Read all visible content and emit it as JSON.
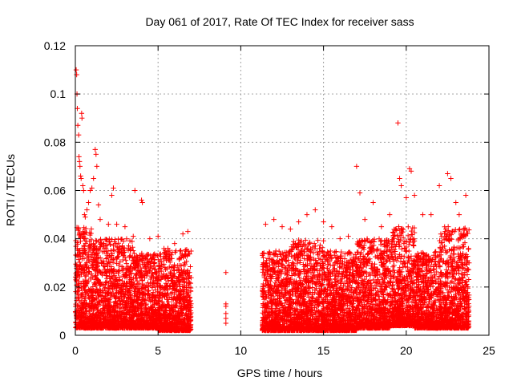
{
  "chart_data": {
    "type": "scatter",
    "title": "Day 061 of 2017, Rate Of TEC Index for receiver sass",
    "xlabel": "GPS time / hours",
    "ylabel": "ROTI / TECUs",
    "xlim": [
      0,
      25
    ],
    "ylim": [
      0,
      0.12
    ],
    "x_ticks": [
      0,
      5,
      10,
      15,
      20,
      25
    ],
    "x_tick_labels": [
      "0",
      "5",
      "10",
      "15",
      "20",
      "25"
    ],
    "y_ticks": [
      0,
      0.02,
      0.04,
      0.06,
      0.08,
      0.1,
      0.12
    ],
    "y_tick_labels": [
      "0",
      "0.02",
      "0.04",
      "0.06",
      "0.08",
      "0.1",
      "0.12"
    ],
    "grid": true,
    "marker": "+",
    "colors": {
      "points": "#ff0000",
      "grid": "#a0a0a0",
      "axis": "#000000"
    },
    "series": [
      {
        "name": "ROTI",
        "points": [
          [
            0.05,
            0.11
          ],
          [
            0.08,
            0.108
          ],
          [
            0.1,
            0.1
          ],
          [
            0.12,
            0.094
          ],
          [
            0.15,
            0.087
          ],
          [
            0.2,
            0.083
          ],
          [
            0.22,
            0.074
          ],
          [
            0.25,
            0.072
          ],
          [
            0.28,
            0.07
          ],
          [
            0.32,
            0.066
          ],
          [
            0.35,
            0.065
          ],
          [
            0.38,
            0.092
          ],
          [
            0.4,
            0.09
          ],
          [
            0.45,
            0.062
          ],
          [
            0.5,
            0.06
          ],
          [
            0.55,
            0.05
          ],
          [
            0.6,
            0.049
          ],
          [
            0.7,
            0.052
          ],
          [
            0.8,
            0.055
          ],
          [
            0.9,
            0.06
          ],
          [
            1.0,
            0.061
          ],
          [
            1.1,
            0.065
          ],
          [
            1.2,
            0.077
          ],
          [
            1.25,
            0.075
          ],
          [
            1.3,
            0.07
          ],
          [
            1.4,
            0.054
          ],
          [
            1.5,
            0.048
          ],
          [
            2.0,
            0.046
          ],
          [
            2.2,
            0.058
          ],
          [
            2.3,
            0.061
          ],
          [
            2.5,
            0.046
          ],
          [
            3.0,
            0.045
          ],
          [
            3.5,
            0.041
          ],
          [
            3.6,
            0.06
          ],
          [
            4.0,
            0.056
          ],
          [
            4.05,
            0.055
          ],
          [
            4.5,
            0.04
          ],
          [
            5.0,
            0.041
          ],
          [
            5.5,
            0.034
          ],
          [
            6.0,
            0.038
          ],
          [
            6.5,
            0.042
          ],
          [
            6.8,
            0.043
          ],
          [
            9.1,
            0.026
          ],
          [
            9.1,
            0.013
          ],
          [
            9.1,
            0.012
          ],
          [
            9.1,
            0.009
          ],
          [
            9.1,
            0.007
          ],
          [
            9.1,
            0.005
          ],
          [
            11.5,
            0.046
          ],
          [
            12.0,
            0.048
          ],
          [
            12.5,
            0.045
          ],
          [
            13.0,
            0.044
          ],
          [
            13.5,
            0.047
          ],
          [
            14.0,
            0.05
          ],
          [
            14.5,
            0.052
          ],
          [
            15.0,
            0.047
          ],
          [
            15.5,
            0.045
          ],
          [
            16.0,
            0.04
          ],
          [
            16.5,
            0.041
          ],
          [
            17.0,
            0.07
          ],
          [
            17.2,
            0.059
          ],
          [
            17.5,
            0.048
          ],
          [
            18.0,
            0.055
          ],
          [
            18.5,
            0.045
          ],
          [
            19.0,
            0.05
          ],
          [
            19.5,
            0.088
          ],
          [
            19.6,
            0.065
          ],
          [
            19.7,
            0.062
          ],
          [
            20.0,
            0.057
          ],
          [
            20.2,
            0.069
          ],
          [
            20.3,
            0.068
          ],
          [
            20.5,
            0.058
          ],
          [
            21.0,
            0.05
          ],
          [
            21.5,
            0.05
          ],
          [
            22.0,
            0.062
          ],
          [
            22.5,
            0.067
          ],
          [
            22.7,
            0.065
          ],
          [
            23.0,
            0.055
          ],
          [
            23.2,
            0.05
          ],
          [
            23.6,
            0.058
          ]
        ]
      }
    ],
    "dense_bands": [
      {
        "x": [
          0.0,
          1.0
        ],
        "y": [
          0.003,
          0.045
        ]
      },
      {
        "x": [
          1.0,
          2.0
        ],
        "y": [
          0.003,
          0.04
        ]
      },
      {
        "x": [
          2.0,
          3.5
        ],
        "y": [
          0.003,
          0.04
        ]
      },
      {
        "x": [
          3.5,
          5.0
        ],
        "y": [
          0.003,
          0.034
        ]
      },
      {
        "x": [
          5.0,
          7.0
        ],
        "y": [
          0.002,
          0.036
        ]
      },
      {
        "x": [
          11.3,
          13.0
        ],
        "y": [
          0.002,
          0.035
        ]
      },
      {
        "x": [
          13.0,
          15.0
        ],
        "y": [
          0.002,
          0.04
        ]
      },
      {
        "x": [
          15.0,
          17.0
        ],
        "y": [
          0.002,
          0.035
        ]
      },
      {
        "x": [
          17.0,
          19.0
        ],
        "y": [
          0.003,
          0.04
        ]
      },
      {
        "x": [
          19.0,
          20.5
        ],
        "y": [
          0.004,
          0.045
        ]
      },
      {
        "x": [
          20.5,
          22.0
        ],
        "y": [
          0.003,
          0.035
        ]
      },
      {
        "x": [
          22.0,
          23.8
        ],
        "y": [
          0.003,
          0.045
        ]
      }
    ]
  }
}
